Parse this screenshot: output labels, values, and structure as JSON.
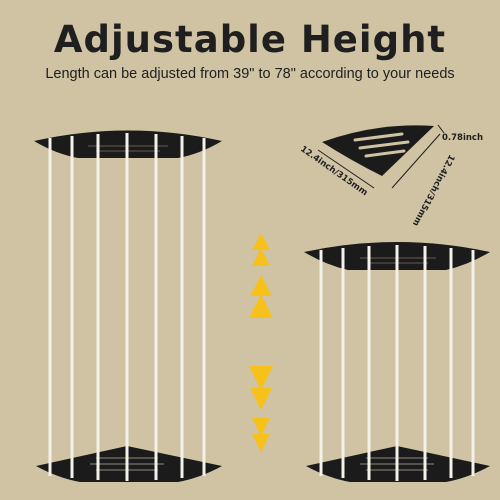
{
  "header": {
    "title": "Adjustable Height",
    "subtitle": "Length can be adjusted from 39\" to 78\" according to your needs"
  },
  "dimensions": {
    "thickness": "0.78inch",
    "left_side": "12.4inch/315mm",
    "right_side": "12.4inch/315mm"
  },
  "arrows": {
    "up": "arrow-up-icon",
    "down": "arrow-down-icon"
  },
  "colors": {
    "background": "#cfc3a3",
    "shelf": "#1b1b1b",
    "rod": "#f3f1ea",
    "arrow": "#f6c11a"
  }
}
